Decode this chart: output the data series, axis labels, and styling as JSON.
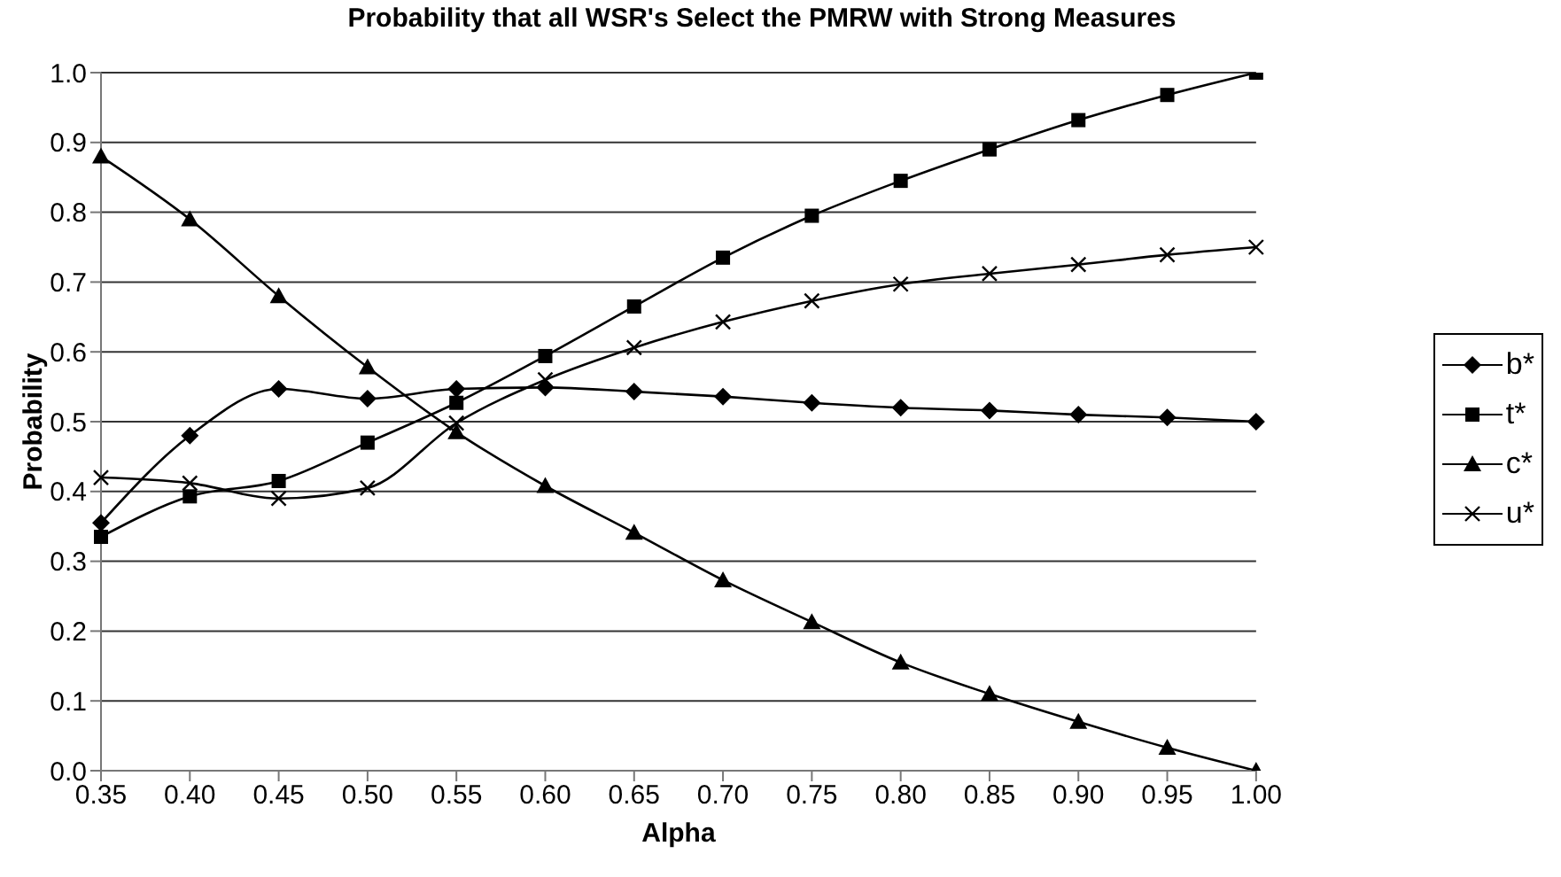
{
  "chart_data": {
    "type": "line",
    "title": "Probability that all WSR's Select the PMRW with Strong Measures",
    "xlabel": "Alpha",
    "ylabel": "Probability",
    "categories": [
      "0.35",
      "0.40",
      "0.45",
      "0.50",
      "0.55",
      "0.60",
      "0.65",
      "0.70",
      "0.75",
      "0.80",
      "0.85",
      "0.90",
      "0.95",
      "1.00"
    ],
    "series": [
      {
        "name": "b*",
        "color": "#000000",
        "marker": "diamond",
        "values": [
          0.355,
          0.48,
          0.547,
          0.533,
          0.547,
          0.549,
          0.543,
          0.536,
          0.527,
          0.52,
          0.516,
          0.51,
          0.506,
          0.5
        ]
      },
      {
        "name": "t*",
        "color": "#000000",
        "marker": "square",
        "values": [
          0.335,
          0.393,
          0.415,
          0.47,
          0.527,
          0.594,
          0.665,
          0.735,
          0.795,
          0.845,
          0.89,
          0.932,
          0.968,
          1.0
        ]
      },
      {
        "name": "c*",
        "color": "#000000",
        "marker": "triangle",
        "values": [
          0.88,
          0.79,
          0.68,
          0.578,
          0.485,
          0.408,
          0.341,
          0.273,
          0.213,
          0.155,
          0.11,
          0.07,
          0.033,
          0.0
        ]
      },
      {
        "name": "u*",
        "color": "#000000",
        "marker": "cross",
        "values": [
          0.42,
          0.412,
          0.39,
          0.405,
          0.498,
          0.56,
          0.606,
          0.643,
          0.673,
          0.697,
          0.712,
          0.725,
          0.739,
          0.75
        ]
      }
    ],
    "ylim": [
      0,
      1
    ],
    "yticks": [
      {
        "value": 0,
        "label": "0.0"
      },
      {
        "value": 0.1,
        "label": "0.1"
      },
      {
        "value": 0.2,
        "label": "0.2"
      },
      {
        "value": 0.3,
        "label": "0.3"
      },
      {
        "value": 0.4,
        "label": "0.4"
      },
      {
        "value": 0.5,
        "label": "0.5"
      },
      {
        "value": 0.6,
        "label": "0.6"
      },
      {
        "value": 0.7,
        "label": "0.7"
      },
      {
        "value": 0.8,
        "label": "0.8"
      },
      {
        "value": 0.9,
        "label": "0.9"
      },
      {
        "value": 1,
        "label": "1.0"
      }
    ],
    "grid": "y",
    "legend": "right",
    "line_style": "solid"
  }
}
